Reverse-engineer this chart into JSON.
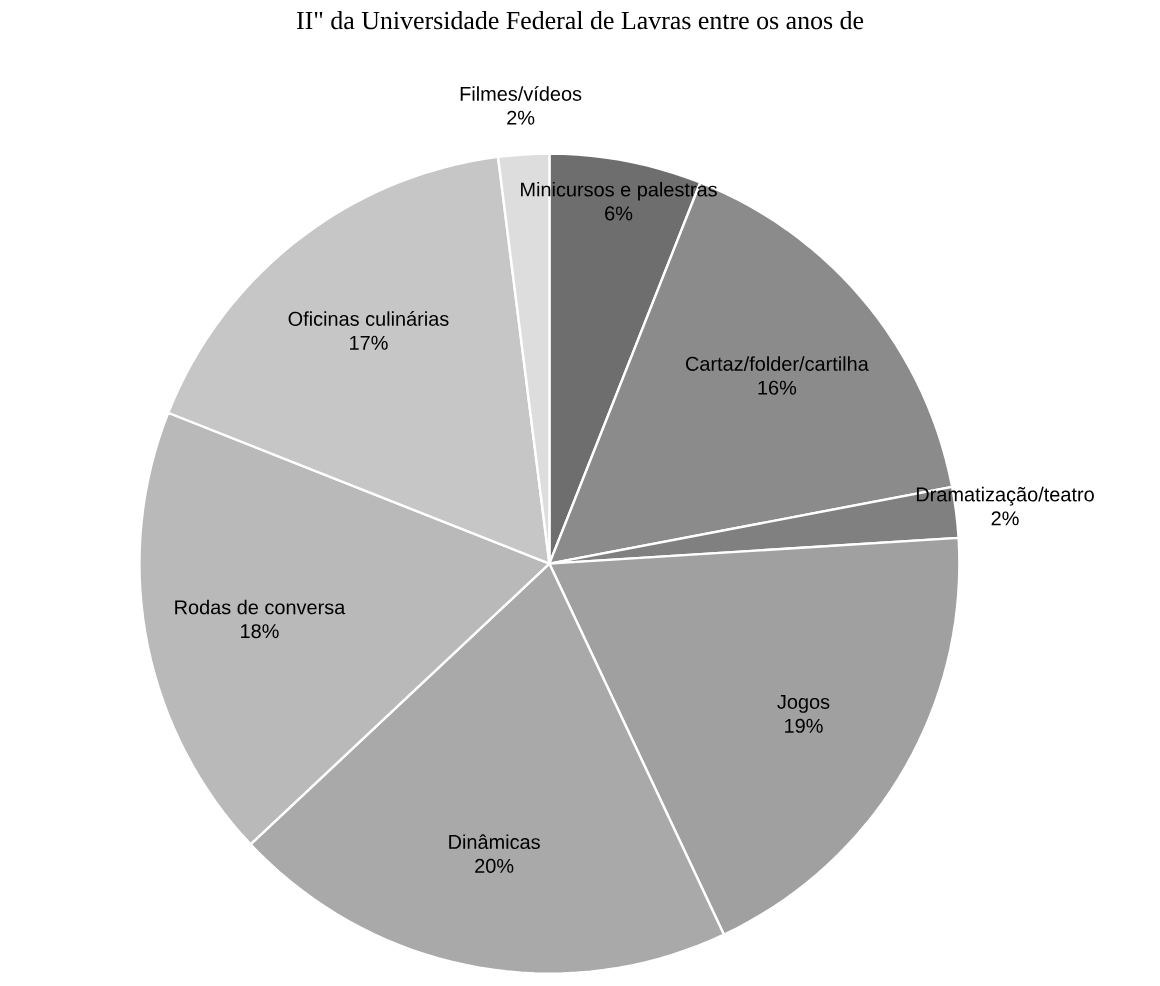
{
  "chart_data": {
    "type": "pie",
    "title": "II\" da Universidade Federal de Lavras entre os anos de",
    "categories": [
      "Minicursos e palestras",
      "Cartaz/folder/cartilha",
      "Dramatização/teatro",
      "Jogos",
      "Dinâmicas",
      "Rodas de conversa",
      "Oficinas culinárias",
      "Filmes/vídeos"
    ],
    "values": [
      6,
      16,
      2,
      19,
      20,
      18,
      17,
      2
    ],
    "value_labels": [
      "6%",
      "16%",
      "2%",
      "19%",
      "20%",
      "18%",
      "17%",
      "2%"
    ],
    "colors": [
      "#6e6e6e",
      "#8b8b8b",
      "#808080",
      "#a0a0a0",
      "#a9a9a9",
      "#b9b9b9",
      "#c6c6c6",
      "#dddddd"
    ]
  }
}
